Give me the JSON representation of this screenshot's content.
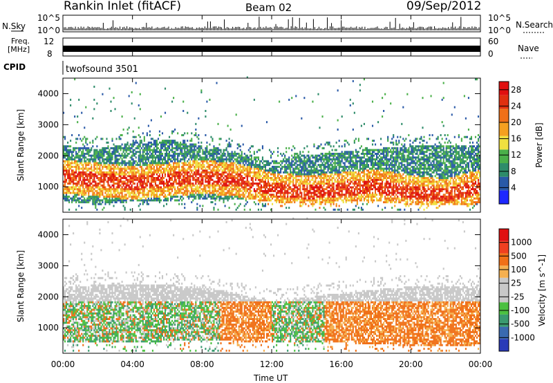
{
  "header": {
    "station": "Rankin Inlet (fitACF)",
    "beam": "Beam 02",
    "date": "09/Sep/2012"
  },
  "status_panels": {
    "nsky_label": "N.Sky",
    "nsearch_label": "N.Search",
    "nsky_ticks": [
      "10^5",
      "10^0"
    ],
    "nsearch_ticks": [
      "10^5",
      "10^0"
    ],
    "freq_label_line1": "Freq.",
    "freq_label_line2": "[MHz]",
    "freq_ticks": [
      "12",
      "8"
    ],
    "nave_label": "Nave",
    "nave_ticks": [
      "60",
      "0"
    ],
    "cpid_label": "CPID",
    "cpid_value": "twofsound 3501"
  },
  "colors": {
    "power_scale": [
      "#1e28ff",
      "#2a5aa8",
      "#2e8c6a",
      "#4bb04a",
      "#f0e040",
      "#f5a020",
      "#f07018",
      "#e03010",
      "#e01010"
    ],
    "velocity_scale": [
      "#e01010",
      "#f04020",
      "#f07018",
      "#f5b050",
      "#c8c8c8",
      "#c8c8c8",
      "#4bc040",
      "#3a9a70",
      "#3a6ab0",
      "#2a3ab8"
    ]
  },
  "chart_data": [
    {
      "type": "heatmap",
      "title": "",
      "xlabel": "Time UT",
      "ylabel": "Slant Range [km]",
      "x_ticks": [
        "00:00",
        "04:00",
        "08:00",
        "12:00",
        "16:00",
        "20:00",
        "00:00"
      ],
      "xlim_hours": [
        0,
        24
      ],
      "ylim": [
        180,
        4500
      ],
      "y_ticks": [
        1000,
        2000,
        3000,
        4000
      ],
      "colorbar": {
        "label": "Power [dB]",
        "ticks": [
          4,
          8,
          12,
          16,
          20,
          24,
          28
        ],
        "range": [
          0,
          30
        ]
      },
      "echo_band": [
        {
          "hour": 0,
          "low": 500,
          "high": 2300,
          "core": 1300
        },
        {
          "hour": 2,
          "low": 400,
          "high": 2200,
          "core": 1200
        },
        {
          "hour": 4,
          "low": 500,
          "high": 2400,
          "core": 1100
        },
        {
          "hour": 6,
          "low": 500,
          "high": 2500,
          "core": 1200
        },
        {
          "hour": 8,
          "low": 600,
          "high": 2300,
          "core": 1300
        },
        {
          "hour": 10,
          "low": 600,
          "high": 2100,
          "core": 1200
        },
        {
          "hour": 12,
          "low": 500,
          "high": 1800,
          "core": 900
        },
        {
          "hour": 14,
          "low": 400,
          "high": 2000,
          "core": 800
        },
        {
          "hour": 16,
          "low": 500,
          "high": 2100,
          "core": 900
        },
        {
          "hour": 18,
          "low": 500,
          "high": 2200,
          "core": 1000
        },
        {
          "hour": 20,
          "low": 400,
          "high": 2300,
          "core": 800
        },
        {
          "hour": 22,
          "low": 400,
          "high": 2300,
          "core": 700
        },
        {
          "hour": 24,
          "low": 400,
          "high": 2300,
          "core": 1000
        }
      ]
    },
    {
      "type": "heatmap",
      "title": "",
      "xlabel": "Time UT",
      "ylabel": "Slant Range [km]",
      "x_ticks": [
        "00:00",
        "04:00",
        "08:00",
        "12:00",
        "16:00",
        "20:00",
        "00:00"
      ],
      "xlim_hours": [
        0,
        24
      ],
      "ylim": [
        180,
        4500
      ],
      "y_ticks": [
        1000,
        2000,
        3000,
        4000
      ],
      "colorbar": {
        "label": "Velocity [m s^-1]",
        "ticks": [
          1000,
          500,
          100,
          25,
          -25,
          -100,
          -500,
          -1000
        ]
      },
      "echo_band": [
        {
          "hour": 0,
          "low": 500,
          "high": 2300,
          "core": 1300
        },
        {
          "hour": 4,
          "low": 500,
          "high": 2400,
          "core": 1100
        },
        {
          "hour": 8,
          "low": 600,
          "high": 2300,
          "core": 1300
        },
        {
          "hour": 12,
          "low": 500,
          "high": 1800,
          "core": 900
        },
        {
          "hour": 16,
          "low": 500,
          "high": 2100,
          "core": 900
        },
        {
          "hour": 20,
          "low": 400,
          "high": 2300,
          "core": 800
        },
        {
          "hour": 24,
          "low": 400,
          "high": 2300,
          "core": 1000
        }
      ]
    }
  ]
}
